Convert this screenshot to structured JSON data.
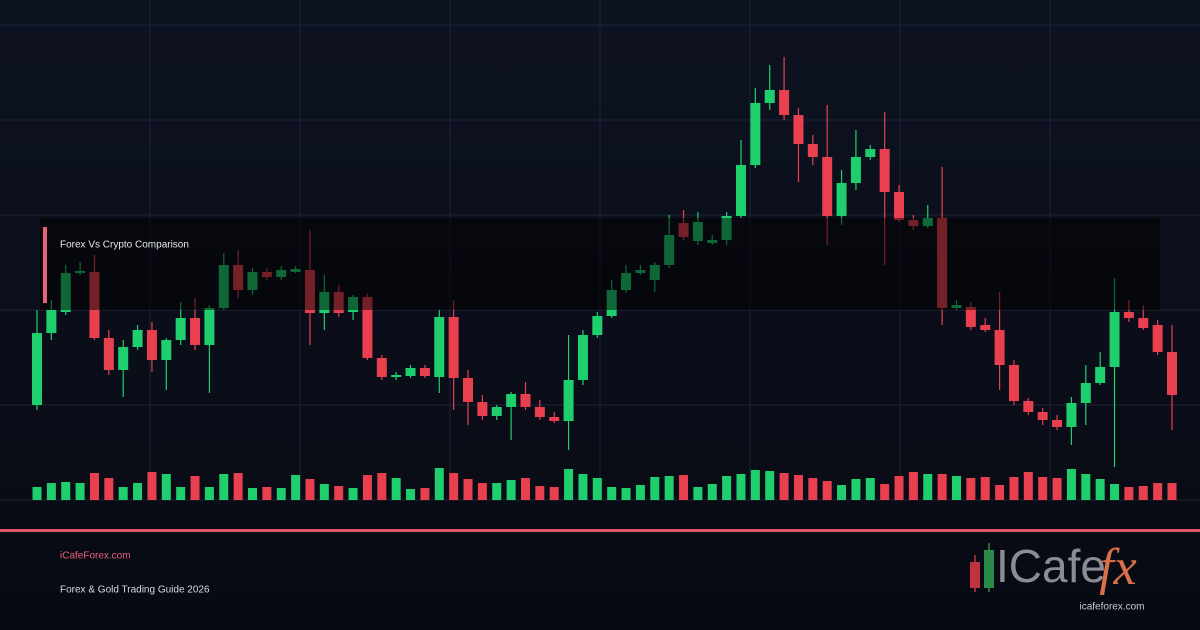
{
  "chart_data": {
    "type": "candlestick",
    "title": "Forex Vs Crypto Comparison",
    "up_color": "#1fcf6e",
    "down_color": "#e8404f",
    "ylim": [
      0,
      500
    ],
    "y2lim": [
      0,
      100
    ],
    "open": [
      95,
      167,
      188,
      227,
      228,
      162,
      130,
      153,
      170,
      140,
      160,
      182,
      155,
      192,
      235,
      210,
      228,
      223,
      228,
      230,
      187,
      208,
      188,
      203,
      142,
      123,
      124,
      132,
      123,
      183,
      122,
      98,
      84,
      93,
      106,
      93,
      83,
      79,
      120,
      165,
      184,
      210,
      227,
      220,
      235,
      277,
      259,
      257,
      260,
      284,
      335,
      397,
      410,
      385,
      356,
      343,
      284,
      317,
      343,
      351,
      308,
      280,
      274,
      282,
      192,
      193,
      175,
      170,
      135,
      99,
      88,
      80,
      73,
      97,
      117,
      133,
      188,
      182,
      175,
      148
    ],
    "high": [
      190,
      200,
      235,
      238,
      245,
      170,
      160,
      175,
      178,
      162,
      198,
      202,
      195,
      247,
      250,
      232,
      232,
      234,
      234,
      270,
      225,
      215,
      205,
      206,
      145,
      128,
      135,
      135,
      190,
      200,
      130,
      105,
      95,
      108,
      118,
      100,
      88,
      165,
      170,
      188,
      220,
      235,
      235,
      238,
      285,
      290,
      288,
      265,
      288,
      360,
      412,
      435,
      443,
      392,
      365,
      395,
      330,
      370,
      355,
      388,
      315,
      285,
      295,
      333,
      200,
      198,
      182,
      208,
      140,
      102,
      92,
      85,
      103,
      135,
      148,
      222,
      200,
      195,
      180,
      175
    ],
    "low": [
      90,
      160,
      185,
      225,
      160,
      125,
      103,
      150,
      128,
      110,
      155,
      150,
      107,
      190,
      202,
      205,
      220,
      220,
      227,
      155,
      170,
      183,
      180,
      140,
      120,
      120,
      122,
      122,
      107,
      90,
      75,
      80,
      80,
      60,
      90,
      80,
      77,
      50,
      115,
      162,
      182,
      207,
      225,
      208,
      232,
      260,
      255,
      255,
      255,
      282,
      332,
      390,
      380,
      318,
      335,
      255,
      275,
      310,
      340,
      235,
      278,
      270,
      272,
      175,
      190,
      170,
      168,
      110,
      95,
      85,
      75,
      70,
      55,
      75,
      115,
      33,
      178,
      170,
      145,
      70
    ],
    "close": [
      167,
      190,
      227,
      229,
      162,
      130,
      153,
      170,
      140,
      160,
      182,
      155,
      192,
      235,
      210,
      228,
      223,
      230,
      231,
      187,
      208,
      187,
      203,
      142,
      123,
      125,
      132,
      124,
      183,
      122,
      98,
      84,
      93,
      106,
      93,
      83,
      79,
      120,
      165,
      184,
      210,
      227,
      230,
      235,
      265,
      263,
      278,
      260,
      284,
      335,
      397,
      410,
      385,
      356,
      343,
      284,
      317,
      343,
      351,
      308,
      280,
      274,
      282,
      192,
      195,
      173,
      170,
      135,
      99,
      88,
      80,
      73,
      97,
      117,
      133,
      188,
      182,
      172,
      148,
      105
    ],
    "volume": [
      13,
      17,
      18,
      17,
      27,
      22,
      13,
      17,
      28,
      26,
      13,
      24,
      13,
      26,
      27,
      12,
      13,
      12,
      25,
      21,
      16,
      14,
      12,
      25,
      27,
      22,
      11,
      12,
      32,
      27,
      21,
      17,
      17,
      20,
      22,
      14,
      13,
      31,
      26,
      22,
      13,
      12,
      15,
      23,
      24,
      25,
      13,
      16,
      24,
      26,
      30,
      29,
      27,
      25,
      22,
      19,
      15,
      21,
      22,
      16,
      24,
      28,
      26,
      26,
      24,
      22,
      23,
      15,
      23,
      28,
      23,
      22,
      31,
      26,
      21,
      16,
      13,
      14,
      17,
      17
    ]
  },
  "footer": {
    "site": "iCafeForex.com",
    "tagline": "Forex & Gold Trading Guide 2026"
  },
  "logo": {
    "text": "ICafe",
    "accent": "fx",
    "url": "icafeforex.com"
  }
}
